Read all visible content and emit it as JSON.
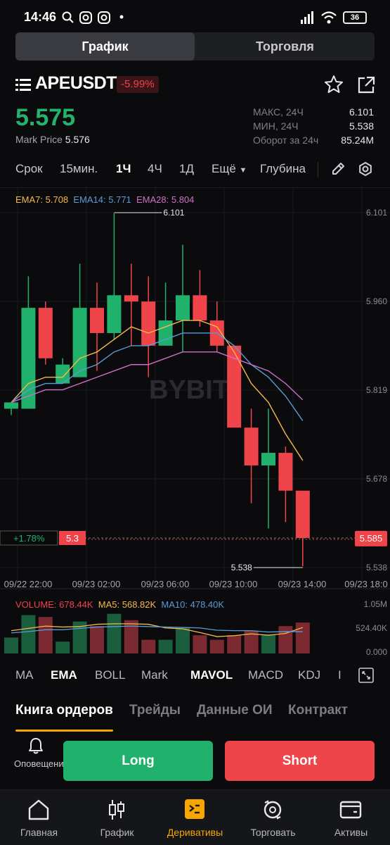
{
  "status_bar": {
    "time": "14:46",
    "battery": "36"
  },
  "segment": {
    "tabs": [
      "График",
      "Торговля"
    ],
    "active": 0
  },
  "header": {
    "symbol": "APEUSDT",
    "change": "-5.99%",
    "last_price": "5.575",
    "mark_price_label": "Mark Price",
    "mark_price_value": "5.576",
    "stats": [
      {
        "label": "МАКС, 24Ч",
        "value": "6.101"
      },
      {
        "label": "МИН, 24Ч",
        "value": "5.538"
      },
      {
        "label": "Оборот за 24ч",
        "value": "85.24M"
      }
    ]
  },
  "timeframes": {
    "items": [
      "Срок",
      "15мин.",
      "1Ч",
      "4Ч",
      "1Д",
      "Ещё",
      "Глубина"
    ],
    "active": "1Ч"
  },
  "chart": {
    "ema_legend": [
      {
        "text": "EMA7: 5.708",
        "color": "#f5b84b"
      },
      {
        "text": "EMA14: 5.771",
        "color": "#5b9bd5"
      },
      {
        "text": "EMA28: 5.804",
        "color": "#d06fc8"
      }
    ],
    "price_axis": [
      "6.101",
      "5.960",
      "5.819",
      "5.678",
      "5.538"
    ],
    "time_axis": [
      "09/22 22:00",
      "09/23 02:00",
      "09/23 06:00",
      "09/23 10:00",
      "09/23 14:00",
      "09/23 18:0"
    ],
    "max_label": "6.101",
    "min_label": "5.538",
    "current_price_tag": "5.585",
    "position_pnl": "+1.78%",
    "position_size": "5.3",
    "watermark": "BYBIT",
    "volume_legend": [
      {
        "text": "VOLUME: 678.44K",
        "color": "#f0414d"
      },
      {
        "text": "MA5: 568.82K",
        "color": "#f5b84b"
      },
      {
        "text": "MA10: 478.40K",
        "color": "#5b9bd5"
      }
    ],
    "volume_axis": [
      "1.05M",
      "524.40K",
      "0.000"
    ]
  },
  "chart_data": {
    "type": "candlestick",
    "x": [
      "09/22 21:00",
      "09/22 22:00",
      "09/22 23:00",
      "09/23 00:00",
      "09/23 01:00",
      "09/23 02:00",
      "09/23 03:00",
      "09/23 04:00",
      "09/23 05:00",
      "09/23 06:00",
      "09/23 07:00",
      "09/23 08:00",
      "09/23 09:00",
      "09/23 10:00",
      "09/23 11:00",
      "09/23 12:00",
      "09/23 13:00",
      "09/23 14:00"
    ],
    "candles": [
      {
        "o": 5.79,
        "h": 5.8,
        "l": 5.78,
        "c": 5.8
      },
      {
        "o": 5.79,
        "h": 6.0,
        "l": 5.79,
        "c": 5.95
      },
      {
        "o": 5.95,
        "h": 5.96,
        "l": 5.86,
        "c": 5.87
      },
      {
        "o": 5.83,
        "h": 5.87,
        "l": 5.83,
        "c": 5.86
      },
      {
        "o": 5.84,
        "h": 6.02,
        "l": 5.84,
        "c": 5.95
      },
      {
        "o": 5.95,
        "h": 5.99,
        "l": 5.85,
        "c": 5.91
      },
      {
        "o": 5.91,
        "h": 6.1,
        "l": 5.9,
        "c": 5.97
      },
      {
        "o": 5.97,
        "h": 6.02,
        "l": 5.89,
        "c": 5.96
      },
      {
        "o": 5.96,
        "h": 6.0,
        "l": 5.84,
        "c": 5.89
      },
      {
        "o": 5.89,
        "h": 5.99,
        "l": 5.89,
        "c": 5.93
      },
      {
        "o": 5.93,
        "h": 6.05,
        "l": 5.88,
        "c": 5.97
      },
      {
        "o": 5.97,
        "h": 6.01,
        "l": 5.92,
        "c": 5.93
      },
      {
        "o": 5.93,
        "h": 5.96,
        "l": 5.88,
        "c": 5.89
      },
      {
        "o": 5.89,
        "h": 5.89,
        "l": 5.76,
        "c": 5.76
      },
      {
        "o": 5.76,
        "h": 5.79,
        "l": 5.64,
        "c": 5.7
      },
      {
        "o": 5.7,
        "h": 5.79,
        "l": 5.6,
        "c": 5.72
      },
      {
        "o": 5.72,
        "h": 5.73,
        "l": 5.61,
        "c": 5.66
      },
      {
        "o": 5.66,
        "h": 5.66,
        "l": 5.54,
        "c": 5.585
      }
    ],
    "ema7": [
      5.8,
      5.83,
      5.84,
      5.84,
      5.87,
      5.88,
      5.9,
      5.92,
      5.91,
      5.92,
      5.93,
      5.93,
      5.92,
      5.88,
      5.83,
      5.8,
      5.75,
      5.708
    ],
    "ema14": [
      5.8,
      5.82,
      5.83,
      5.83,
      5.85,
      5.86,
      5.88,
      5.89,
      5.89,
      5.9,
      5.91,
      5.91,
      5.91,
      5.89,
      5.86,
      5.84,
      5.81,
      5.771
    ],
    "ema28": [
      5.8,
      5.81,
      5.82,
      5.82,
      5.83,
      5.84,
      5.85,
      5.86,
      5.86,
      5.87,
      5.88,
      5.88,
      5.88,
      5.87,
      5.86,
      5.85,
      5.83,
      5.804
    ],
    "volume": [
      0.35,
      0.84,
      0.8,
      0.26,
      0.7,
      0.6,
      0.87,
      0.73,
      0.3,
      0.3,
      0.56,
      0.4,
      0.3,
      0.4,
      0.5,
      0.42,
      0.6,
      0.678
    ],
    "ma5": [
      0.5,
      0.55,
      0.6,
      0.58,
      0.59,
      0.64,
      0.65,
      0.65,
      0.64,
      0.56,
      0.54,
      0.46,
      0.37,
      0.39,
      0.43,
      0.4,
      0.44,
      0.569
    ],
    "ma10": [
      0.45,
      0.48,
      0.52,
      0.52,
      0.55,
      0.58,
      0.59,
      0.6,
      0.59,
      0.58,
      0.57,
      0.56,
      0.51,
      0.5,
      0.5,
      0.47,
      0.48,
      0.478
    ],
    "ylim": [
      5.538,
      6.101
    ]
  },
  "indicators": {
    "items": [
      "MA",
      "EMA",
      "BOLL",
      "Mark",
      "MAVOL",
      "MACD",
      "KDJ",
      "I"
    ],
    "active": [
      "EMA",
      "MAVOL"
    ]
  },
  "info_tabs": {
    "items": [
      "Книга ордеров",
      "Трейды",
      "Данные ОИ",
      "Контракт"
    ],
    "active": 0
  },
  "actions": {
    "alert_label": "Оповещения",
    "long": "Long",
    "short": "Short"
  },
  "bottom_nav": {
    "items": [
      {
        "label": "Главная",
        "icon": "home-icon"
      },
      {
        "label": "График",
        "icon": "candles-icon"
      },
      {
        "label": "Деривативы",
        "icon": "derivatives-icon"
      },
      {
        "label": "Торговать",
        "icon": "trade-icon"
      },
      {
        "label": "Активы",
        "icon": "wallet-icon"
      }
    ],
    "active": 2
  }
}
